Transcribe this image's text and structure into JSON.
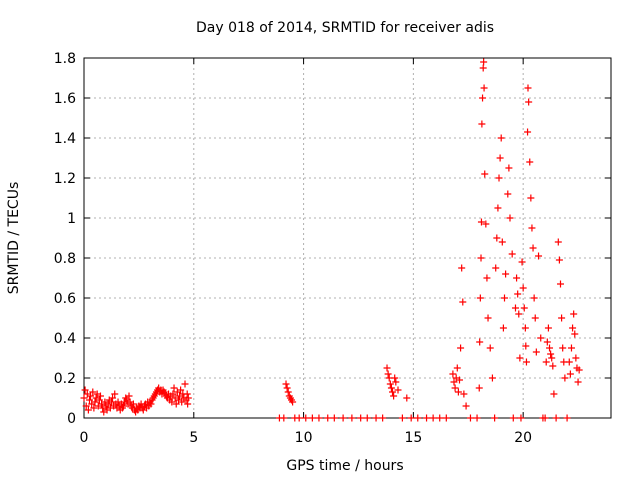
{
  "chart_data": {
    "type": "scatter",
    "title": "Day 018 of 2014, SRMTID for receiver adis",
    "xlabel": "GPS time / hours",
    "ylabel": "SRMTID / TECUs",
    "xlim": [
      0,
      24
    ],
    "ylim": [
      0,
      1.8
    ],
    "grid": true,
    "legend": "none",
    "marker": "+",
    "marker_color": "#ff0000",
    "x_ticks": [
      0,
      5,
      10,
      15,
      20
    ],
    "x_tick_labels": [
      "0",
      "5",
      "10",
      "15",
      "20"
    ],
    "y_ticks": [
      0,
      0.2,
      0.4,
      0.6,
      0.8,
      1,
      1.2,
      1.4,
      1.6,
      1.8
    ],
    "y_tick_labels": [
      "0",
      "0.2",
      "0.4",
      "0.6",
      "0.8",
      "1",
      "1.2",
      "1.4",
      "1.6",
      "1.8"
    ],
    "series": [
      {
        "name": "SRMTID",
        "points": [
          [
            0.0,
            0.1
          ],
          [
            0.05,
            0.14
          ],
          [
            0.1,
            0.06
          ],
          [
            0.15,
            0.12
          ],
          [
            0.2,
            0.04
          ],
          [
            0.25,
            0.09
          ],
          [
            0.3,
            0.11
          ],
          [
            0.35,
            0.07
          ],
          [
            0.4,
            0.13
          ],
          [
            0.45,
            0.05
          ],
          [
            0.5,
            0.08
          ],
          [
            0.55,
            0.1
          ],
          [
            0.6,
            0.12
          ],
          [
            0.65,
            0.06
          ],
          [
            0.7,
            0.09
          ],
          [
            0.75,
            0.11
          ],
          [
            0.8,
            0.07
          ],
          [
            0.85,
            0.05
          ],
          [
            0.9,
            0.03
          ],
          [
            0.95,
            0.08
          ],
          [
            1.0,
            0.06
          ],
          [
            1.05,
            0.04
          ],
          [
            1.1,
            0.07
          ],
          [
            1.15,
            0.09
          ],
          [
            1.2,
            0.05
          ],
          [
            1.25,
            0.08
          ],
          [
            1.3,
            0.1
          ],
          [
            1.35,
            0.06
          ],
          [
            1.4,
            0.12
          ],
          [
            1.45,
            0.07
          ],
          [
            1.5,
            0.05
          ],
          [
            1.55,
            0.08
          ],
          [
            1.6,
            0.06
          ],
          [
            1.65,
            0.04
          ],
          [
            1.7,
            0.07
          ],
          [
            1.75,
            0.05
          ],
          [
            1.8,
            0.06
          ],
          [
            1.85,
            0.08
          ],
          [
            1.9,
            0.1
          ],
          [
            1.95,
            0.09
          ],
          [
            2.0,
            0.07
          ],
          [
            2.05,
            0.11
          ],
          [
            2.1,
            0.08
          ],
          [
            2.15,
            0.06
          ],
          [
            2.2,
            0.05
          ],
          [
            2.25,
            0.07
          ],
          [
            2.3,
            0.04
          ],
          [
            2.35,
            0.03
          ],
          [
            2.4,
            0.05
          ],
          [
            2.45,
            0.04
          ],
          [
            2.5,
            0.06
          ],
          [
            2.55,
            0.05
          ],
          [
            2.6,
            0.07
          ],
          [
            2.65,
            0.05
          ],
          [
            2.7,
            0.04
          ],
          [
            2.75,
            0.06
          ],
          [
            2.8,
            0.07
          ],
          [
            2.85,
            0.05
          ],
          [
            2.9,
            0.08
          ],
          [
            2.95,
            0.06
          ],
          [
            3.0,
            0.08
          ],
          [
            3.05,
            0.07
          ],
          [
            3.1,
            0.09
          ],
          [
            3.15,
            0.1
          ],
          [
            3.2,
            0.11
          ],
          [
            3.25,
            0.12
          ],
          [
            3.3,
            0.13
          ],
          [
            3.35,
            0.14
          ],
          [
            3.4,
            0.15
          ],
          [
            3.45,
            0.13
          ],
          [
            3.5,
            0.14
          ],
          [
            3.55,
            0.12
          ],
          [
            3.6,
            0.14
          ],
          [
            3.65,
            0.13
          ],
          [
            3.7,
            0.12
          ],
          [
            3.75,
            0.11
          ],
          [
            3.8,
            0.1
          ],
          [
            3.85,
            0.12
          ],
          [
            3.9,
            0.09
          ],
          [
            3.95,
            0.11
          ],
          [
            4.0,
            0.08
          ],
          [
            4.05,
            0.12
          ],
          [
            4.1,
            0.15
          ],
          [
            4.15,
            0.1
          ],
          [
            4.2,
            0.07
          ],
          [
            4.25,
            0.13
          ],
          [
            4.3,
            0.09
          ],
          [
            4.35,
            0.11
          ],
          [
            4.4,
            0.14
          ],
          [
            4.45,
            0.08
          ],
          [
            4.5,
            0.12
          ],
          [
            4.55,
            0.1
          ],
          [
            4.6,
            0.17
          ],
          [
            4.65,
            0.09
          ],
          [
            4.7,
            0.12
          ],
          [
            4.72,
            0.07
          ],
          [
            4.75,
            0.1
          ],
          [
            8.9,
            0.0
          ],
          [
            9.1,
            0.0
          ],
          [
            9.2,
            0.17
          ],
          [
            9.25,
            0.15
          ],
          [
            9.3,
            0.13
          ],
          [
            9.35,
            0.11
          ],
          [
            9.4,
            0.1
          ],
          [
            9.45,
            0.09
          ],
          [
            9.5,
            0.08
          ],
          [
            9.6,
            0.0
          ],
          [
            9.8,
            0.0
          ],
          [
            10.1,
            0.0
          ],
          [
            10.4,
            0.0
          ],
          [
            10.7,
            0.0
          ],
          [
            11.1,
            0.0
          ],
          [
            11.4,
            0.0
          ],
          [
            11.8,
            0.0
          ],
          [
            12.2,
            0.0
          ],
          [
            12.6,
            0.0
          ],
          [
            12.9,
            0.0
          ],
          [
            13.3,
            0.0
          ],
          [
            13.6,
            0.0
          ],
          [
            13.8,
            0.25
          ],
          [
            13.85,
            0.22
          ],
          [
            13.9,
            0.2
          ],
          [
            13.95,
            0.17
          ],
          [
            14.0,
            0.15
          ],
          [
            14.05,
            0.13
          ],
          [
            14.1,
            0.11
          ],
          [
            14.15,
            0.2
          ],
          [
            14.2,
            0.18
          ],
          [
            14.3,
            0.14
          ],
          [
            14.5,
            0.0
          ],
          [
            14.7,
            0.1
          ],
          [
            14.9,
            0.0
          ],
          [
            15.2,
            0.0
          ],
          [
            15.6,
            0.0
          ],
          [
            15.9,
            0.0
          ],
          [
            16.2,
            0.0
          ],
          [
            16.5,
            0.0
          ],
          [
            16.8,
            0.22
          ],
          [
            16.85,
            0.18
          ],
          [
            16.9,
            0.15
          ],
          [
            16.95,
            0.2
          ],
          [
            17.0,
            0.25
          ],
          [
            17.05,
            0.13
          ],
          [
            17.1,
            0.19
          ],
          [
            17.15,
            0.35
          ],
          [
            17.2,
            0.75
          ],
          [
            17.25,
            0.58
          ],
          [
            17.3,
            0.12
          ],
          [
            17.4,
            0.06
          ],
          [
            17.6,
            0.0
          ],
          [
            17.9,
            0.0
          ],
          [
            18.0,
            0.15
          ],
          [
            18.02,
            0.38
          ],
          [
            18.05,
            0.6
          ],
          [
            18.08,
            0.8
          ],
          [
            18.1,
            0.98
          ],
          [
            18.12,
            1.47
          ],
          [
            18.15,
            1.6
          ],
          [
            18.18,
            1.75
          ],
          [
            18.2,
            1.78
          ],
          [
            18.22,
            1.65
          ],
          [
            18.25,
            1.22
          ],
          [
            18.3,
            0.97
          ],
          [
            18.35,
            0.7
          ],
          [
            18.4,
            0.5
          ],
          [
            18.5,
            0.35
          ],
          [
            18.6,
            0.2
          ],
          [
            18.7,
            0.0
          ],
          [
            18.75,
            0.75
          ],
          [
            18.8,
            0.9
          ],
          [
            18.85,
            1.05
          ],
          [
            18.9,
            1.2
          ],
          [
            18.95,
            1.3
          ],
          [
            19.0,
            1.4
          ],
          [
            19.05,
            0.88
          ],
          [
            19.1,
            0.45
          ],
          [
            19.15,
            0.6
          ],
          [
            19.2,
            0.72
          ],
          [
            19.3,
            1.12
          ],
          [
            19.35,
            1.25
          ],
          [
            19.4,
            1.0
          ],
          [
            19.5,
            0.82
          ],
          [
            19.55,
            0.0
          ],
          [
            19.65,
            0.55
          ],
          [
            19.7,
            0.7
          ],
          [
            19.75,
            0.62
          ],
          [
            19.8,
            0.52
          ],
          [
            19.85,
            0.3
          ],
          [
            19.9,
            0.0
          ],
          [
            19.95,
            0.78
          ],
          [
            20.0,
            0.65
          ],
          [
            20.05,
            0.55
          ],
          [
            20.1,
            0.45
          ],
          [
            20.12,
            0.36
          ],
          [
            20.15,
            0.28
          ],
          [
            20.2,
            1.43
          ],
          [
            20.22,
            1.65
          ],
          [
            20.25,
            1.58
          ],
          [
            20.3,
            1.28
          ],
          [
            20.35,
            1.1
          ],
          [
            20.4,
            0.95
          ],
          [
            20.45,
            0.85
          ],
          [
            20.5,
            0.6
          ],
          [
            20.55,
            0.5
          ],
          [
            20.6,
            0.33
          ],
          [
            20.7,
            0.81
          ],
          [
            20.8,
            0.4
          ],
          [
            20.9,
            0.0
          ],
          [
            21.0,
            0.0
          ],
          [
            21.05,
            0.28
          ],
          [
            21.1,
            0.38
          ],
          [
            21.15,
            0.45
          ],
          [
            21.2,
            0.35
          ],
          [
            21.25,
            0.32
          ],
          [
            21.3,
            0.3
          ],
          [
            21.35,
            0.26
          ],
          [
            21.4,
            0.12
          ],
          [
            21.5,
            0.0
          ],
          [
            21.6,
            0.88
          ],
          [
            21.65,
            0.79
          ],
          [
            21.7,
            0.67
          ],
          [
            21.75,
            0.5
          ],
          [
            21.8,
            0.35
          ],
          [
            21.85,
            0.28
          ],
          [
            21.9,
            0.2
          ],
          [
            22.0,
            0.0
          ],
          [
            22.1,
            0.28
          ],
          [
            22.15,
            0.22
          ],
          [
            22.2,
            0.35
          ],
          [
            22.25,
            0.45
          ],
          [
            22.3,
            0.52
          ],
          [
            22.35,
            0.42
          ],
          [
            22.4,
            0.3
          ],
          [
            22.45,
            0.25
          ],
          [
            22.5,
            0.18
          ],
          [
            22.55,
            0.24
          ]
        ]
      }
    ]
  }
}
